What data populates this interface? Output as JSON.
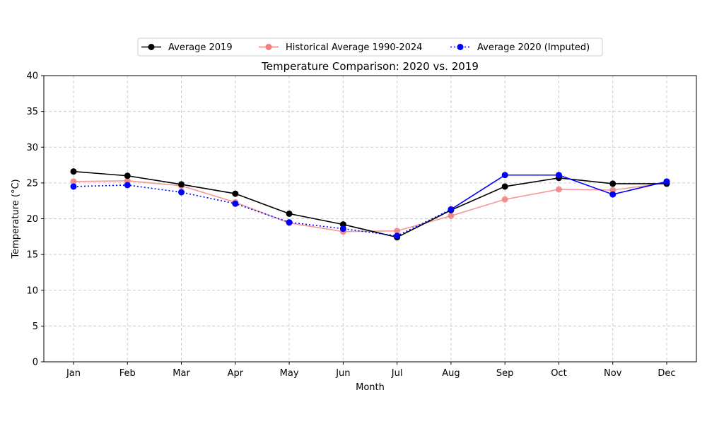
{
  "chart_data": {
    "type": "line",
    "title": "Temperature Comparison: 2020 vs. 2019",
    "xlabel": "Month",
    "ylabel": "Temperature (°C)",
    "categories": [
      "Jan",
      "Feb",
      "Mar",
      "Apr",
      "May",
      "Jun",
      "Jul",
      "Aug",
      "Sep",
      "Oct",
      "Nov",
      "Dec"
    ],
    "ylim": [
      0,
      40
    ],
    "yticks": [
      0,
      5,
      10,
      15,
      20,
      25,
      30,
      35,
      40
    ],
    "grid": true,
    "legend_position": "top-center",
    "series": [
      {
        "name": "Average 2019",
        "color": "#000000",
        "style": "solid",
        "values": [
          26.6,
          26.0,
          24.8,
          23.5,
          20.7,
          19.2,
          17.4,
          21.2,
          24.5,
          25.7,
          24.9,
          24.9
        ]
      },
      {
        "name": "Historical Average 1990-2024",
        "color": "#f08080",
        "style": "solid",
        "values": [
          25.2,
          25.3,
          24.6,
          22.3,
          19.4,
          18.2,
          18.3,
          20.4,
          22.7,
          24.1,
          24.0,
          25.0
        ]
      },
      {
        "name": "Average 2020 (Imputed)",
        "color": "#0000ff",
        "style": "dotted",
        "imputed_from_index": 8,
        "values": [
          24.5,
          24.7,
          23.7,
          22.1,
          19.5,
          18.6,
          17.6,
          21.3,
          26.1,
          26.1,
          23.4,
          25.2
        ]
      }
    ]
  }
}
